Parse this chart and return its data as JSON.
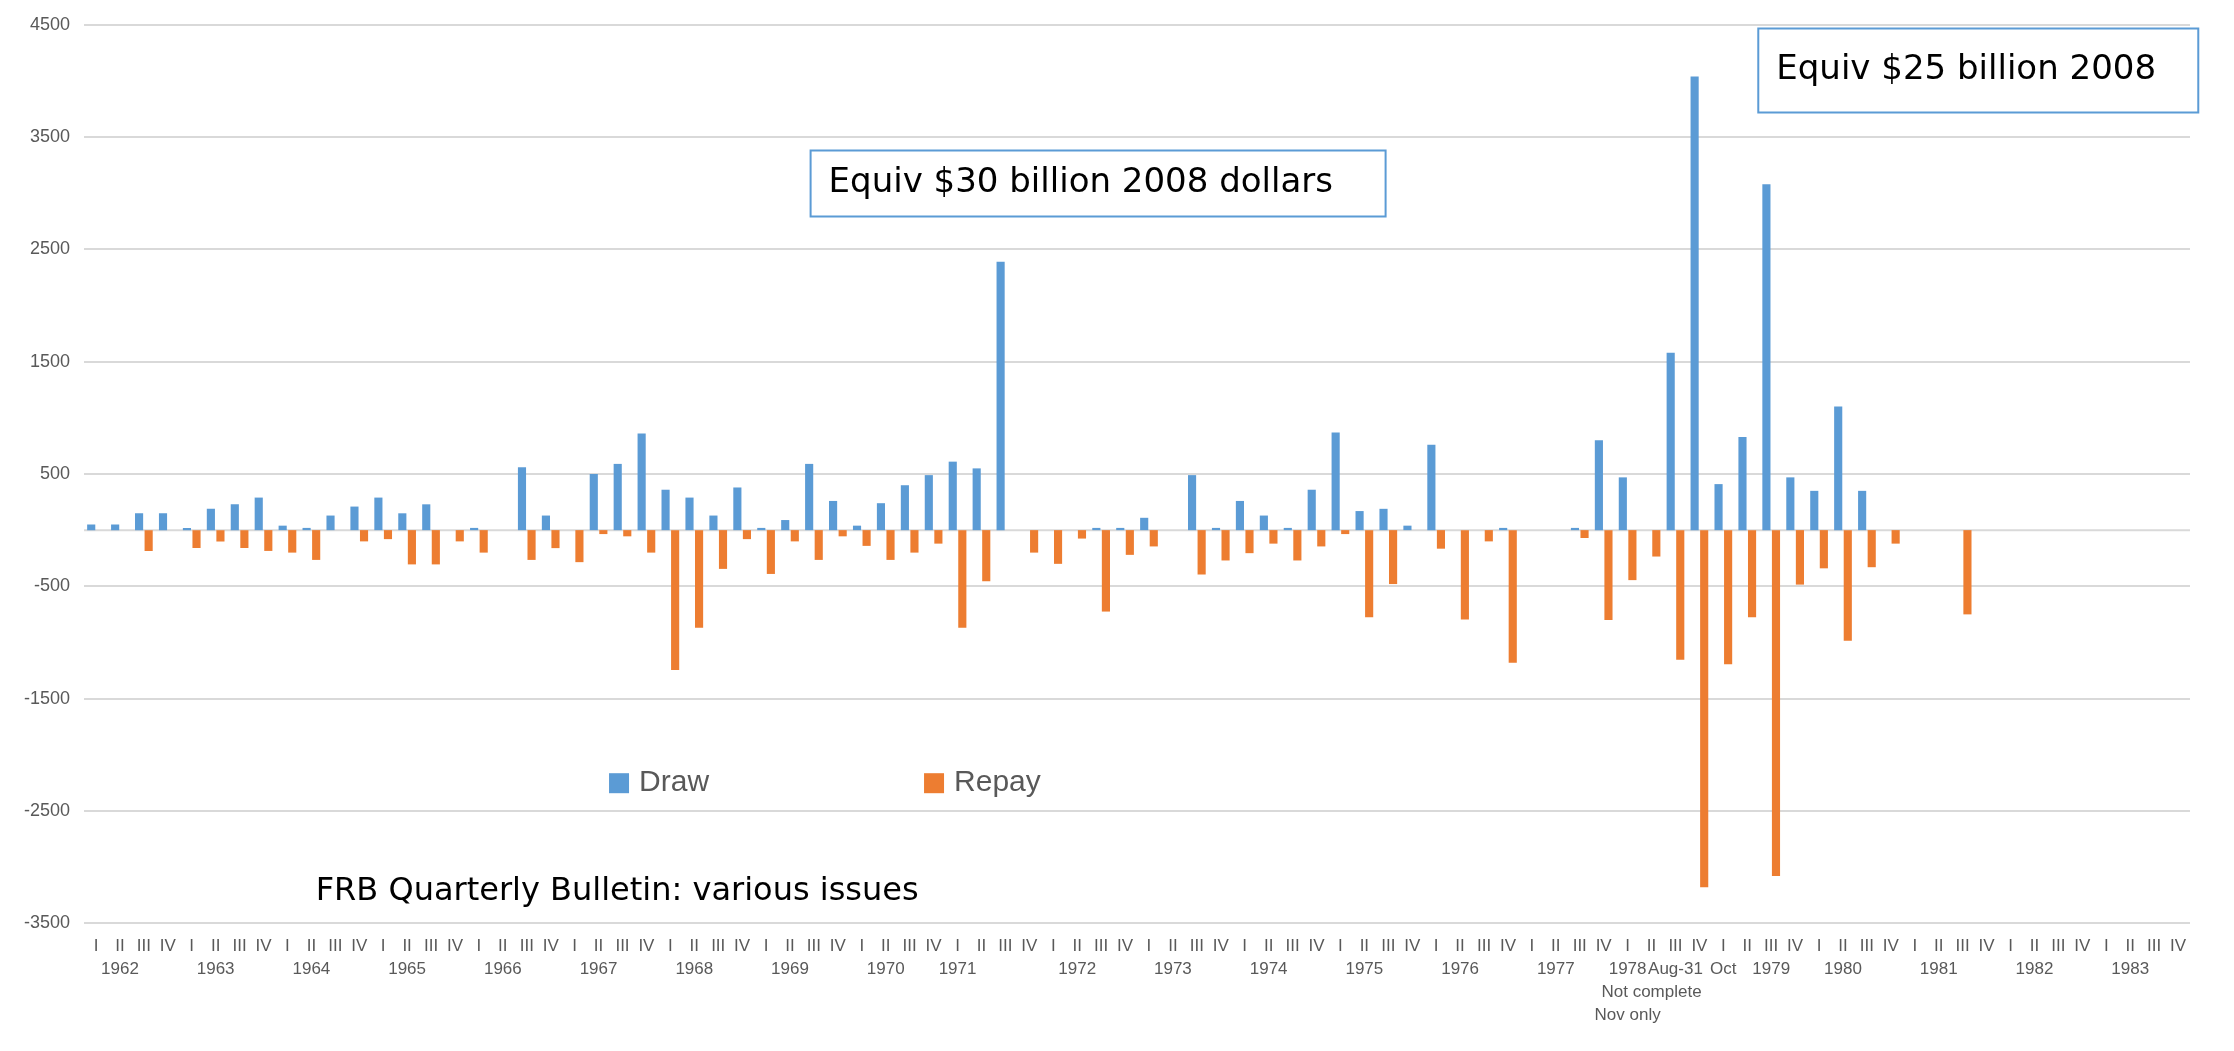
{
  "chart_data": {
    "type": "bar",
    "categories": [
      "I",
      "II\n1962",
      "III",
      "IV",
      "I",
      "II\n1963",
      "III",
      "IV",
      "I",
      "II\n1964",
      "III",
      "IV",
      "I",
      "II\n1965",
      "III",
      "IV",
      "I",
      "II\n1966",
      "III",
      "IV",
      "I",
      "II\n1967",
      "III",
      "IV",
      "I",
      "II\n1968",
      "III",
      "IV",
      "I",
      "II\n1969",
      "III",
      "IV",
      "I",
      "II\n1970",
      "III",
      "IV",
      "I\n1971",
      "II",
      "III",
      "IV",
      "I",
      "II\n1972",
      "III",
      "IV",
      "I",
      "II\n1973",
      "III",
      "IV",
      "I",
      "II\n1974",
      "III",
      "IV",
      "I",
      "II\n1975",
      "III",
      "IV",
      "I",
      "II\n1976",
      "III",
      "IV",
      "I",
      "II\n1977",
      "III",
      "IV",
      "I\n1978\n\nNov only",
      "II\n\nNot complete",
      "III\nAug-31",
      "IV",
      "I\nOct",
      "II",
      "III\n1979",
      "IV",
      "I",
      "II\n1980",
      "III",
      "IV",
      "I",
      "II\n1981",
      "III",
      "IV",
      "I",
      "II\n1982",
      "III",
      "IV",
      "I",
      "II\n1983",
      "III",
      "IV"
    ],
    "series": [
      {
        "name": "Draw",
        "color": "#5b9bd5",
        "values": [
          50,
          50,
          150,
          150,
          20,
          190,
          230,
          290,
          40,
          20,
          130,
          210,
          290,
          150,
          230,
          0,
          20,
          0,
          560,
          130,
          0,
          500,
          590,
          860,
          360,
          290,
          130,
          380,
          20,
          90,
          590,
          260,
          40,
          240,
          400,
          490,
          610,
          550,
          2390,
          0,
          0,
          0,
          20,
          20,
          110,
          0,
          490,
          20,
          260,
          130,
          20,
          360,
          870,
          170,
          190,
          40,
          760,
          0,
          0,
          20,
          0,
          0,
          20,
          800,
          470,
          0,
          1580,
          4040,
          410,
          830,
          3080,
          470,
          350,
          1100,
          350,
          0,
          0,
          0,
          0,
          0,
          0,
          0,
          0,
          0,
          0,
          0,
          0,
          0
        ]
      },
      {
        "name": "Repay",
        "color": "#ed7d31",
        "values": [
          0,
          0,
          -185,
          0,
          -160,
          -100,
          -160,
          -185,
          -200,
          -265,
          0,
          -100,
          -80,
          -305,
          -305,
          -100,
          -200,
          0,
          -265,
          -160,
          -285,
          -35,
          -55,
          -200,
          -1245,
          -870,
          -345,
          -80,
          -390,
          -100,
          -265,
          -55,
          -140,
          -265,
          -200,
          -120,
          -870,
          -455,
          0,
          -200,
          -300,
          -75,
          -725,
          -220,
          -145,
          0,
          -395,
          -270,
          -205,
          -120,
          -270,
          -145,
          -35,
          -775,
          -480,
          0,
          -165,
          -795,
          -100,
          -1180,
          0,
          0,
          -70,
          -800,
          -445,
          -235,
          -1155,
          -3180,
          -1195,
          -775,
          -3080,
          -485,
          -340,
          -985,
          -330,
          -120,
          0,
          0,
          -750,
          0,
          0,
          0,
          0,
          0,
          0,
          0,
          0,
          0
        ]
      }
    ],
    "ylim": [
      -3500,
      4500
    ],
    "yticks": [
      -3500,
      -2500,
      -1500,
      -500,
      500,
      1500,
      2500,
      3500,
      4500
    ],
    "grid": "y",
    "legend": "bottom left",
    "annotations": [
      "Equiv $30 billion 2008 dollars",
      "Equiv $25 billion 2008",
      "FRB Quarterly Bulletin: various issues"
    ]
  }
}
